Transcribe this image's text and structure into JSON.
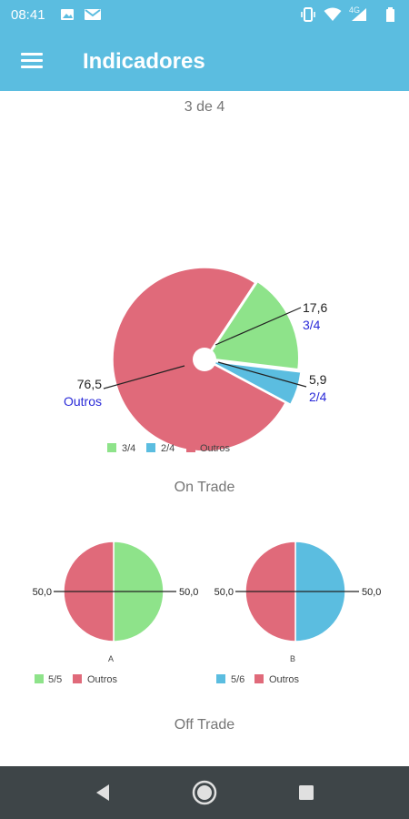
{
  "status_bar": {
    "time": "08:41",
    "network_label": "4G",
    "icons": [
      "image-icon",
      "gmail-icon",
      "vibrate-icon",
      "wifi-icon",
      "signal-icon",
      "battery-icon"
    ]
  },
  "app_bar": {
    "title": "Indicadores",
    "menu_icon": "menu-icon",
    "background_color": "#5bbde0"
  },
  "section1": {
    "title": "3 de 4"
  },
  "section2": {
    "title": "On Trade"
  },
  "section3": {
    "title": "Off Trade"
  },
  "nav_bar": {
    "icons": [
      "back-icon",
      "home-icon",
      "recents-icon"
    ]
  },
  "chart_data": [
    {
      "type": "pie",
      "donut": true,
      "slices": [
        {
          "label": "3/4",
          "value": 17.6,
          "value_label": "17,6",
          "color": "#8ee38a"
        },
        {
          "label": "2/4",
          "value": 5.9,
          "value_label": "5,9",
          "color": "#5bbde0"
        },
        {
          "label": "Outros",
          "value": 76.5,
          "value_label": "76,5",
          "color": "#e06a7a"
        }
      ],
      "legend": [
        "3/4",
        "2/4",
        "Outros"
      ]
    },
    {
      "type": "pie",
      "donut": false,
      "caption": "A",
      "slices": [
        {
          "label": "5/5",
          "value": 50.0,
          "value_label": "50,0",
          "color": "#8ee38a"
        },
        {
          "label": "Outros",
          "value": 50.0,
          "value_label": "50,0",
          "color": "#e06a7a"
        }
      ],
      "legend": [
        "5/5",
        "Outros"
      ]
    },
    {
      "type": "pie",
      "donut": false,
      "caption": "B",
      "slices": [
        {
          "label": "5/6",
          "value": 50.0,
          "value_label": "50,0",
          "color": "#5bbde0"
        },
        {
          "label": "Outros",
          "value": 50.0,
          "value_label": "50,0",
          "color": "#e06a7a"
        }
      ],
      "legend": [
        "5/6",
        "Outros"
      ]
    }
  ]
}
